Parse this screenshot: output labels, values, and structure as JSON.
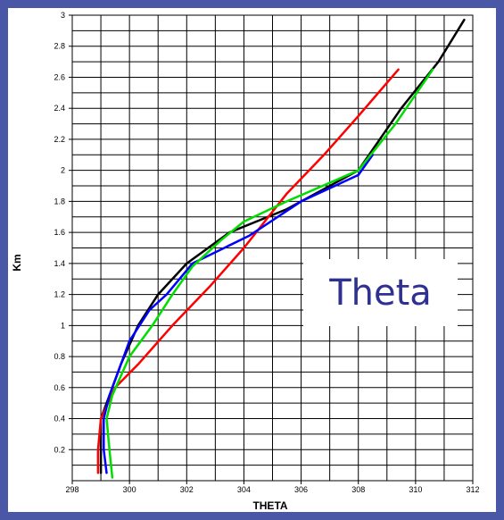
{
  "chart_data": {
    "type": "line",
    "xlabel": "THETA",
    "ylabel": "Km",
    "xlim": [
      298,
      312
    ],
    "ylim": [
      0,
      3
    ],
    "x_ticks": [
      "298",
      "300",
      "302",
      "304",
      "306",
      "308",
      "310",
      "312"
    ],
    "y_ticks": [
      "0.2",
      "0.4",
      "0.6",
      "0.8",
      "1",
      "1.2",
      "1.4",
      "1.6",
      "1.8",
      "2",
      "2.2",
      "2.4",
      "2.6",
      "2.8",
      "3"
    ],
    "grid": true,
    "overlay_label": "Theta",
    "series": [
      {
        "color": "#000000",
        "points": [
          [
            299.0,
            0.05
          ],
          [
            299.0,
            0.2
          ],
          [
            299.0,
            0.4
          ],
          [
            299.3,
            0.55
          ],
          [
            299.7,
            0.75
          ],
          [
            300.3,
            1.0
          ],
          [
            301.0,
            1.2
          ],
          [
            302.0,
            1.4
          ],
          [
            303.5,
            1.6
          ],
          [
            305.5,
            1.75
          ],
          [
            308.0,
            2.0
          ],
          [
            309.5,
            2.4
          ],
          [
            310.8,
            2.7
          ],
          [
            311.7,
            2.97
          ]
        ]
      },
      {
        "color": "#ff0000",
        "points": [
          [
            298.9,
            0.05
          ],
          [
            298.9,
            0.2
          ],
          [
            299.0,
            0.4
          ],
          [
            299.5,
            0.6
          ],
          [
            300.3,
            0.75
          ],
          [
            301.5,
            1.0
          ],
          [
            302.8,
            1.25
          ],
          [
            304.0,
            1.5
          ],
          [
            305.5,
            1.85
          ],
          [
            306.8,
            2.1
          ],
          [
            308.0,
            2.35
          ],
          [
            309.4,
            2.65
          ]
        ]
      },
      {
        "color": "#0000ff",
        "points": [
          [
            299.2,
            0.05
          ],
          [
            299.1,
            0.2
          ],
          [
            299.1,
            0.4
          ],
          [
            299.3,
            0.55
          ],
          [
            299.7,
            0.75
          ],
          [
            300.0,
            0.9
          ],
          [
            300.7,
            1.1
          ],
          [
            301.3,
            1.2
          ],
          [
            302.2,
            1.4
          ],
          [
            304.2,
            1.58
          ],
          [
            306.0,
            1.8
          ],
          [
            308.0,
            1.97
          ],
          [
            308.5,
            2.1
          ]
        ]
      },
      {
        "color": "#00dd00",
        "points": [
          [
            299.4,
            0.02
          ],
          [
            299.3,
            0.2
          ],
          [
            299.2,
            0.4
          ],
          [
            299.4,
            0.55
          ],
          [
            300.0,
            0.8
          ],
          [
            300.8,
            1.0
          ],
          [
            301.5,
            1.2
          ],
          [
            302.2,
            1.38
          ],
          [
            303.2,
            1.55
          ],
          [
            304.0,
            1.67
          ],
          [
            305.5,
            1.8
          ],
          [
            308.0,
            2.0
          ],
          [
            309.3,
            2.3
          ],
          [
            310.6,
            2.65
          ]
        ]
      }
    ]
  }
}
